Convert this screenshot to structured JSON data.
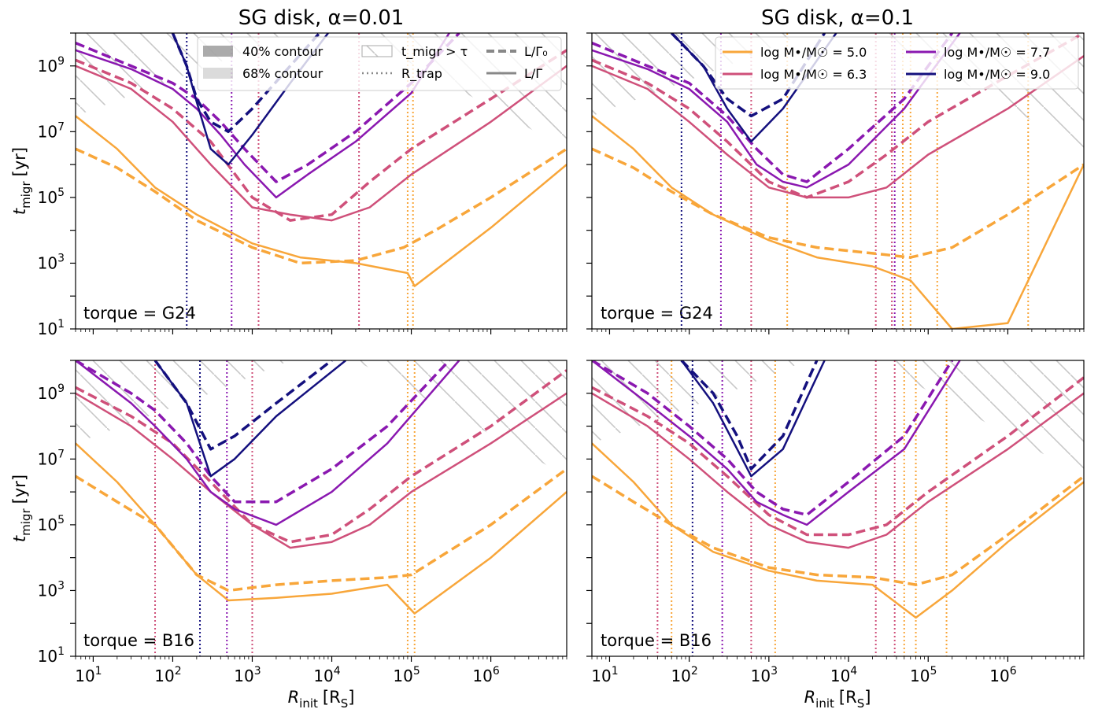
{
  "figure": {
    "x_label": "R",
    "x_label_sub": "init",
    "x_label_unit": "[R",
    "x_label_unit_sub": "S",
    "x_label_close": "]",
    "y_label": "t",
    "y_label_sub": "migr",
    "y_label_unit": "[yr]"
  },
  "colors": {
    "logM_5.0": "#f8a63a",
    "logM_6.3": "#cf507a",
    "logM_7.7": "#8a18b0",
    "logM_9.0": "#14107e",
    "hatch": "#c8c8c8"
  },
  "legend_left": {
    "contour40": "40% contour",
    "contour68": "68% contour",
    "hatch": "t_migr > τ",
    "trap": "R_trap",
    "dashed": "L/Γ₀",
    "solid": "L/Γ"
  },
  "legend_right": [
    {
      "label": "log M•/M☉ = 5.0",
      "color": "#f8a63a"
    },
    {
      "label": "log M•/M☉ = 6.3",
      "color": "#cf507a"
    },
    {
      "label": "log M•/M☉ = 7.7",
      "color": "#8a18b0"
    },
    {
      "label": "log M•/M☉ = 9.0",
      "color": "#14107e"
    }
  ],
  "chart_data": [
    {
      "type": "line",
      "panel": "top-left",
      "title": "SG disk, α=0.01",
      "annotation": "torque = G24",
      "x_scale": "log",
      "y_scale": "log",
      "xlim": [
        6,
        9000000
      ],
      "ylim": [
        10,
        10000000000
      ],
      "trap_radii": {
        "5.0": [
          90000,
          105000
        ],
        "6.3": [
          1200,
          22000
        ],
        "7.7": [
          550
        ],
        "9.0": [
          150
        ]
      },
      "series": [
        {
          "mass": "5.0",
          "style": "dashed",
          "x": [
            6,
            20,
            60,
            200,
            1000,
            4000,
            20000,
            80000,
            200000,
            1000000,
            9000000
          ],
          "y": [
            3000000,
            800000,
            150000,
            20000,
            3000,
            1000,
            1200,
            3000,
            10000,
            100000,
            3000000
          ]
        },
        {
          "mass": "5.0",
          "style": "solid",
          "x": [
            6,
            20,
            60,
            200,
            1000,
            4000,
            20000,
            90000,
            110000,
            1000000,
            9000000
          ],
          "y": [
            30000000,
            3000000,
            200000,
            30000,
            4000,
            1500,
            1000,
            500,
            200,
            12000,
            1000000
          ]
        },
        {
          "mass": "6.3",
          "style": "dashed",
          "x": [
            6,
            30,
            100,
            300,
            1000,
            3000,
            10000,
            30000,
            100000,
            1000000,
            9000000
          ],
          "y": [
            1500000000,
            300000000,
            50000000,
            5000000,
            100000,
            20000,
            30000,
            300000,
            3000000,
            100000000,
            3000000000
          ]
        },
        {
          "mass": "6.3",
          "style": "solid",
          "x": [
            6,
            30,
            100,
            300,
            1000,
            3000,
            10000,
            30000,
            100000,
            1000000,
            9000000
          ],
          "y": [
            1000000000,
            200000000,
            20000000,
            1000000,
            50000,
            30000,
            20000,
            50000,
            500000,
            20000000,
            1000000000
          ]
        },
        {
          "mass": "7.7",
          "style": "dashed",
          "x": [
            6,
            30,
            100,
            200,
            400,
            800,
            2000,
            5000,
            20000,
            100000,
            400000
          ],
          "y": [
            5000000000,
            1000000000,
            300000000,
            100000000,
            20000000,
            3000000,
            300000,
            1000000,
            10000000,
            300000000,
            10000000000
          ]
        },
        {
          "mass": "7.7",
          "style": "solid",
          "x": [
            6,
            30,
            100,
            200,
            400,
            800,
            2000,
            5000,
            20000,
            100000,
            300000
          ],
          "y": [
            3000000000,
            800000000,
            200000000,
            50000000,
            8000000,
            1000000,
            100000,
            500000,
            5000000,
            150000000,
            10000000000
          ]
        },
        {
          "mass": "9.0",
          "style": "dashed",
          "x": [
            100,
            150,
            200,
            300,
            500,
            1000,
            3000,
            7000
          ],
          "y": [
            10000000000,
            1000000000,
            100000000,
            20000000,
            10000000,
            50000000,
            1000000000,
            10000000000
          ]
        },
        {
          "mass": "9.0",
          "style": "solid",
          "x": [
            100,
            150,
            200,
            300,
            500,
            1000,
            3000,
            9000
          ],
          "y": [
            10000000000,
            1000000000,
            80000000,
            3000000,
            1000000,
            8000000,
            300000000,
            10000000000
          ]
        }
      ]
    },
    {
      "type": "line",
      "panel": "top-right",
      "title": "SG disk, α=0.1",
      "annotation": "torque = G24",
      "x_scale": "log",
      "y_scale": "log",
      "xlim": [
        6,
        9000000
      ],
      "ylim": [
        10,
        10000000000
      ],
      "trap_radii": {
        "5.0": [
          1700,
          48000,
          60000,
          130000,
          1800000
        ],
        "6.3": [
          600,
          22000,
          35000
        ],
        "7.7": [
          250,
          38000
        ],
        "9.0": [
          80
        ]
      },
      "series": [
        {
          "mass": "5.0",
          "style": "dashed",
          "x": [
            6,
            20,
            60,
            200,
            1000,
            4000,
            20000,
            60000,
            200000,
            1000000,
            9000000
          ],
          "y": [
            3000000,
            800000,
            150000,
            30000,
            6000,
            3000,
            2000,
            1500,
            3000,
            30000,
            1000000
          ]
        },
        {
          "mass": "5.0",
          "style": "solid",
          "x": [
            6,
            20,
            60,
            200,
            1000,
            4000,
            20000,
            60000,
            200000,
            1000000,
            9000000
          ],
          "y": [
            30000000,
            3000000,
            200000,
            30000,
            5000,
            1500,
            800,
            300,
            10,
            15,
            1000000
          ]
        },
        {
          "mass": "6.3",
          "style": "dashed",
          "x": [
            6,
            30,
            100,
            300,
            1000,
            3000,
            10000,
            30000,
            100000,
            1000000,
            9000000
          ],
          "y": [
            1500000000,
            300000000,
            50000000,
            5000000,
            300000,
            100000,
            300000,
            2000000,
            20000000,
            500000000,
            10000000000
          ]
        },
        {
          "mass": "6.3",
          "style": "solid",
          "x": [
            6,
            30,
            100,
            300,
            1000,
            3000,
            10000,
            30000,
            100000,
            1000000,
            9000000
          ],
          "y": [
            1000000000,
            200000000,
            20000000,
            2000000,
            200000,
            100000,
            100000,
            200000,
            2000000,
            50000000,
            2000000000
          ]
        },
        {
          "mass": "7.7",
          "style": "dashed",
          "x": [
            6,
            30,
            100,
            300,
            700,
            1500,
            3000,
            10000,
            50000,
            200000
          ],
          "y": [
            5000000000,
            1000000000,
            300000000,
            30000000,
            3000000,
            500000,
            300000,
            3000000,
            100000000,
            10000000000
          ]
        },
        {
          "mass": "7.7",
          "style": "solid",
          "x": [
            6,
            30,
            100,
            300,
            700,
            1500,
            3000,
            10000,
            50000,
            250000
          ],
          "y": [
            3000000000,
            800000000,
            200000000,
            20000000,
            1000000,
            300000,
            200000,
            1000000,
            50000000,
            10000000000
          ]
        },
        {
          "mass": "9.0",
          "style": "dashed",
          "x": [
            60,
            150,
            300,
            600,
            1500,
            5000
          ],
          "y": [
            10000000000,
            1000000000,
            100000000,
            30000000,
            100000000,
            10000000000
          ]
        },
        {
          "mass": "9.0",
          "style": "solid",
          "x": [
            60,
            150,
            300,
            600,
            1500,
            7000
          ],
          "y": [
            10000000000,
            1000000000,
            50000000,
            5000000,
            50000000,
            10000000000
          ]
        }
      ]
    },
    {
      "type": "line",
      "panel": "bottom-left",
      "title": "",
      "annotation": "torque = B16",
      "x_scale": "log",
      "y_scale": "log",
      "xlim": [
        6,
        9000000
      ],
      "ylim": [
        10,
        10000000000
      ],
      "trap_radii": {
        "5.0": [
          90000,
          110000
        ],
        "6.3": [
          60,
          1000
        ],
        "7.7": [
          480
        ],
        "9.0": [
          220
        ]
      },
      "series": [
        {
          "mass": "5.0",
          "style": "dashed",
          "x": [
            6,
            20,
            60,
            200,
            500,
            2000,
            10000,
            50000,
            100000,
            1000000,
            9000000
          ],
          "y": [
            3000000,
            500000,
            100000,
            3000,
            1000,
            1500,
            2000,
            2500,
            3000,
            100000,
            5000000
          ]
        },
        {
          "mass": "5.0",
          "style": "solid",
          "x": [
            6,
            20,
            60,
            200,
            500,
            2000,
            10000,
            50000,
            110000,
            1000000,
            9000000
          ],
          "y": [
            30000000,
            2000000,
            100000,
            3000,
            500,
            600,
            800,
            1500,
            200,
            10000,
            1000000
          ]
        },
        {
          "mass": "6.3",
          "style": "dashed",
          "x": [
            6,
            30,
            100,
            300,
            1000,
            3000,
            10000,
            30000,
            100000,
            1000000,
            9000000
          ],
          "y": [
            1500000000,
            200000000,
            30000000,
            2000000,
            100000,
            30000,
            50000,
            300000,
            3000000,
            100000000,
            5000000000
          ]
        },
        {
          "mass": "6.3",
          "style": "solid",
          "x": [
            6,
            30,
            100,
            300,
            1000,
            3000,
            10000,
            30000,
            100000,
            1000000,
            9000000
          ],
          "y": [
            1000000000,
            100000000,
            10000000,
            1000000,
            100000,
            20000,
            30000,
            100000,
            1000000,
            30000000,
            1000000000
          ]
        },
        {
          "mass": "7.7",
          "style": "dashed",
          "x": [
            6,
            30,
            60,
            150,
            300,
            600,
            2000,
            10000,
            50000,
            300000
          ],
          "y": [
            10000000000,
            1000000000,
            300000000,
            30000000,
            3000000,
            500000,
            500000,
            5000000,
            100000000,
            10000000000
          ]
        },
        {
          "mass": "7.7",
          "style": "solid",
          "x": [
            6,
            30,
            60,
            150,
            300,
            600,
            2000,
            10000,
            50000,
            400000
          ],
          "y": [
            10000000000,
            500000000,
            100000000,
            10000000,
            1000000,
            300000,
            100000,
            1000000,
            30000000,
            10000000000
          ]
        },
        {
          "mass": "9.0",
          "style": "dashed",
          "x": [
            60,
            150,
            300,
            600,
            2000,
            10000
          ],
          "y": [
            10000000000,
            500000000,
            20000000,
            50000000,
            500000000,
            10000000000
          ]
        },
        {
          "mass": "9.0",
          "style": "solid",
          "x": [
            60,
            150,
            300,
            600,
            2000,
            15000
          ],
          "y": [
            10000000000,
            500000000,
            3000000,
            10000000,
            200000000,
            10000000000
          ]
        }
      ]
    },
    {
      "type": "line",
      "panel": "bottom-right",
      "title": "",
      "annotation": "torque = B16",
      "x_scale": "log",
      "y_scale": "log",
      "xlim": [
        6,
        9000000
      ],
      "ylim": [
        10,
        10000000000
      ],
      "trap_radii": {
        "5.0": [
          60,
          1200,
          50000,
          70000,
          170000
        ],
        "6.3": [
          40,
          600,
          22000,
          38000
        ],
        "7.7": [
          260
        ],
        "9.0": [
          110
        ]
      },
      "series": [
        {
          "mass": "5.0",
          "style": "dashed",
          "x": [
            6,
            20,
            60,
            200,
            1000,
            4000,
            20000,
            70000,
            200000,
            1000000,
            9000000
          ],
          "y": [
            3000000,
            500000,
            100000,
            20000,
            5000,
            3000,
            2500,
            1500,
            3000,
            50000,
            3000000
          ]
        },
        {
          "mass": "5.0",
          "style": "solid",
          "x": [
            6,
            20,
            60,
            200,
            1000,
            4000,
            20000,
            70000,
            200000,
            1000000,
            9000000
          ],
          "y": [
            30000000,
            2000000,
            100000,
            15000,
            4000,
            2000,
            1500,
            150,
            1000,
            30000,
            2000000
          ]
        },
        {
          "mass": "6.3",
          "style": "dashed",
          "x": [
            6,
            30,
            100,
            300,
            1000,
            3000,
            10000,
            30000,
            100000,
            1000000,
            9000000
          ],
          "y": [
            1500000000,
            200000000,
            30000000,
            3000000,
            200000,
            50000,
            50000,
            100000,
            1000000,
            50000000,
            3000000000
          ]
        },
        {
          "mass": "6.3",
          "style": "solid",
          "x": [
            6,
            30,
            100,
            300,
            1000,
            3000,
            10000,
            30000,
            100000,
            1000000,
            9000000
          ],
          "y": [
            1000000000,
            100000000,
            10000000,
            1000000,
            100000,
            30000,
            20000,
            50000,
            500000,
            20000000,
            1000000000
          ]
        },
        {
          "mass": "7.7",
          "style": "dashed",
          "x": [
            6,
            30,
            100,
            300,
            700,
            1500,
            3000,
            10000,
            50000,
            200000
          ],
          "y": [
            10000000000,
            1000000000,
            100000000,
            10000000,
            1000000,
            300000,
            200000,
            2000000,
            50000000,
            10000000000
          ]
        },
        {
          "mass": "7.7",
          "style": "solid",
          "x": [
            6,
            30,
            100,
            300,
            700,
            1500,
            3000,
            10000,
            50000,
            250000
          ],
          "y": [
            10000000000,
            500000000,
            50000000,
            5000000,
            500000,
            200000,
            100000,
            1000000,
            20000000,
            10000000000
          ]
        },
        {
          "mass": "9.0",
          "style": "dashed",
          "x": [
            80,
            200,
            400,
            600,
            1500,
            4000
          ],
          "y": [
            10000000000,
            1000000000,
            50000000,
            5000000,
            50000000,
            10000000000
          ]
        },
        {
          "mass": "9.0",
          "style": "solid",
          "x": [
            80,
            200,
            400,
            600,
            1500,
            5000
          ],
          "y": [
            10000000000,
            500000000,
            20000000,
            3000000,
            20000000,
            10000000000
          ]
        }
      ]
    }
  ]
}
